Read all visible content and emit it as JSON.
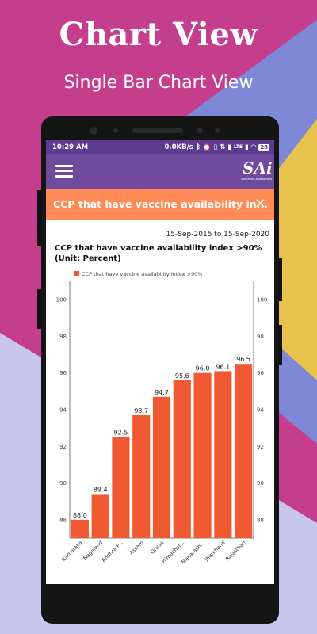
{
  "promo": {
    "title": "Chart View",
    "subtitle": "Single Bar Chart View"
  },
  "colors": {
    "bg_magenta": "#c53e8d",
    "bg_lavender": "#c9c6ee",
    "bg_blue": "#7e88d7",
    "bg_yellow": "#e9c24e",
    "status_bar": "#5c3b90",
    "toolbar": "#6f4a9d",
    "header_orange": "#ff8a55",
    "bar_color": "#f05a33"
  },
  "status_bar": {
    "time": "10:29 AM",
    "speed": "0.0KB/s",
    "battery": "28",
    "icons": [
      "bluetooth-icon",
      "alarm-icon",
      "vibrate-icon",
      "data-icon",
      "signal-icon",
      "lte-icon",
      "signal-icon-2",
      "wifi-icon",
      "battery-icon"
    ]
  },
  "toolbar": {
    "menu_icon": "hamburger-menu-icon",
    "logo_text": "SAi",
    "logo_subtext": "sanitation assessment"
  },
  "header_bar": {
    "title": "CCP that have vaccine availability in...",
    "close_icon": "×"
  },
  "chart_header": {
    "date_range": "15-Sep-2015 to 15-Sep-2020",
    "title": "CCP that have vaccine availability index >90% (Unit: Percent)"
  },
  "chart_data": {
    "type": "bar",
    "categories": [
      "Karnataka",
      "Nagaland",
      "Andhra P...",
      "Assam",
      "Orissa",
      "Himachal...",
      "Maharash...",
      "Jharkhand",
      "Rajasthan"
    ],
    "values": [
      88.0,
      89.4,
      92.5,
      93.7,
      94.7,
      95.6,
      96.0,
      96.1,
      96.5
    ],
    "value_labels": [
      "88.0",
      "89.4",
      "92.5",
      "93.7",
      "94.7",
      "95.6",
      "96.0",
      "96.1",
      "96.5"
    ],
    "series": [
      {
        "name": "CCP that have vaccine availability index >90%",
        "values": [
          88.0,
          89.4,
          92.5,
          93.7,
          94.7,
          95.6,
          96.0,
          96.1,
          96.5
        ]
      }
    ],
    "legend": "CCP that have vaccine availability index >90%",
    "legend_position": "top",
    "ylim": [
      87,
      101
    ],
    "yticks": [
      88,
      90,
      92,
      94,
      96,
      98,
      100
    ],
    "ytick_labels": [
      "88",
      "90",
      "92",
      "94",
      "96",
      "98",
      "100"
    ],
    "right_axis": true,
    "grid": false
  },
  "nav_bar": {
    "buttons": [
      "recent-apps-square-icon",
      "home-circle-icon",
      "back-triangle-icon"
    ]
  }
}
